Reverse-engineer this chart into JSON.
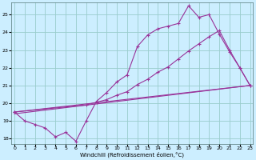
{
  "bg_color": "#cceeff",
  "grid_color": "#99cccc",
  "line_color": "#993399",
  "xlabel": "Windchill (Refroidissement éolien,°C)",
  "xlim_min": 0,
  "xlim_max": 23,
  "ylim_min": 17.7,
  "ylim_max": 25.7,
  "yticks": [
    18,
    19,
    20,
    21,
    22,
    23,
    24,
    25
  ],
  "xticks": [
    0,
    1,
    2,
    3,
    4,
    5,
    6,
    7,
    8,
    9,
    10,
    11,
    12,
    13,
    14,
    15,
    16,
    17,
    18,
    19,
    20,
    21,
    22,
    23
  ],
  "curve1_x": [
    0,
    1,
    2,
    3,
    4,
    5,
    6,
    7,
    8,
    9,
    10,
    11,
    12,
    13,
    14,
    15,
    16,
    17,
    18,
    19,
    20,
    21,
    22,
    23
  ],
  "curve1_y": [
    19.5,
    19.0,
    18.8,
    18.6,
    18.1,
    18.35,
    17.85,
    19.0,
    20.1,
    20.6,
    21.2,
    21.6,
    23.2,
    23.85,
    24.2,
    24.35,
    24.5,
    25.5,
    24.85,
    25.0,
    23.9,
    22.9,
    22.0,
    21.0
  ],
  "curve2_x": [
    0,
    7,
    8,
    9,
    10,
    11,
    12,
    13,
    14,
    15,
    16,
    17,
    18,
    19,
    20,
    21,
    22,
    23
  ],
  "curve2_y": [
    19.5,
    19.9,
    20.05,
    20.2,
    20.45,
    20.65,
    21.05,
    21.35,
    21.75,
    22.05,
    22.5,
    22.95,
    23.35,
    23.75,
    24.1,
    23.0,
    22.0,
    21.0
  ],
  "line1_x": [
    0,
    23
  ],
  "line1_y": [
    19.4,
    21.0
  ],
  "line2_x": [
    0,
    23
  ],
  "line2_y": [
    19.5,
    21.0
  ]
}
